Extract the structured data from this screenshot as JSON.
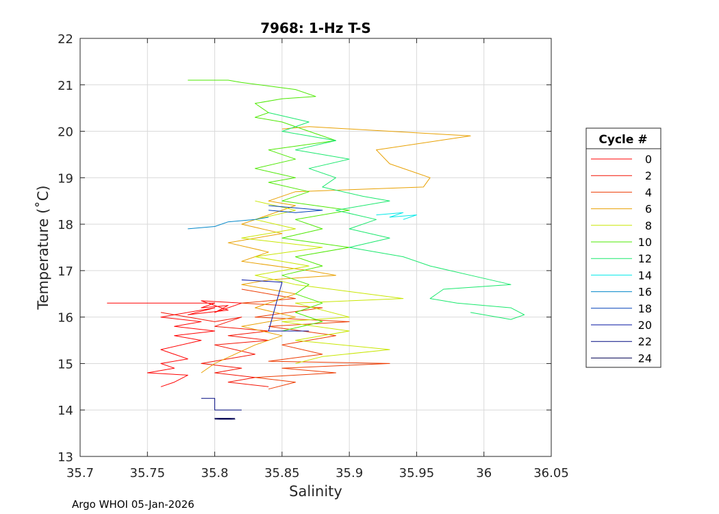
{
  "chart_data": {
    "type": "line",
    "title": "7968: 1-Hz T-S",
    "xlabel": "Salinity",
    "ylabel": "Temperature (˚C)",
    "xlim": [
      35.7,
      36.05
    ],
    "ylim": [
      13,
      22
    ],
    "xticks": [
      35.7,
      35.75,
      35.8,
      35.85,
      35.9,
      35.95,
      36,
      36.05
    ],
    "xtick_labels": [
      "35.7",
      "35.75",
      "35.8",
      "35.85",
      "35.9",
      "35.95",
      "36",
      "36.05"
    ],
    "yticks": [
      13,
      14,
      15,
      16,
      17,
      18,
      19,
      20,
      21,
      22
    ],
    "ytick_labels": [
      "13",
      "14",
      "15",
      "16",
      "17",
      "18",
      "19",
      "20",
      "21",
      "22"
    ],
    "grid": true,
    "legend_title": "Cycle #",
    "legend_position": "outside-right",
    "credit": "Argo WHOI 05-Jan-2026",
    "series": [
      {
        "name": "0",
        "color": "#ff0000",
        "points": [
          [
            35.72,
            16.3
          ],
          [
            35.8,
            16.3
          ],
          [
            35.79,
            16.2
          ],
          [
            35.81,
            16.25
          ],
          [
            35.8,
            16.1
          ],
          [
            35.82,
            16.3
          ],
          [
            35.79,
            16.35
          ],
          [
            35.81,
            16.15
          ],
          [
            35.78,
            16.05
          ],
          [
            35.8,
            16.2
          ],
          [
            35.76,
            16.0
          ],
          [
            35.79,
            15.9
          ],
          [
            35.77,
            15.8
          ],
          [
            35.8,
            15.7
          ],
          [
            35.77,
            15.6
          ],
          [
            35.79,
            15.5
          ],
          [
            35.76,
            15.3
          ],
          [
            35.78,
            15.1
          ],
          [
            35.76,
            15.0
          ],
          [
            35.77,
            14.9
          ],
          [
            35.75,
            14.8
          ],
          [
            35.78,
            14.75
          ],
          [
            35.77,
            14.6
          ],
          [
            35.76,
            14.5
          ]
        ]
      },
      {
        "name": "2",
        "color": "#f41000",
        "points": [
          [
            35.76,
            16.1
          ],
          [
            35.8,
            15.9
          ],
          [
            35.82,
            16.0
          ],
          [
            35.8,
            15.8
          ],
          [
            35.84,
            15.7
          ],
          [
            35.81,
            15.6
          ],
          [
            35.84,
            15.5
          ],
          [
            35.8,
            15.4
          ],
          [
            35.83,
            15.2
          ],
          [
            35.79,
            15.0
          ],
          [
            35.82,
            14.9
          ],
          [
            35.8,
            14.8
          ],
          [
            35.83,
            14.7
          ],
          [
            35.81,
            14.6
          ],
          [
            35.84,
            14.5
          ]
        ]
      },
      {
        "name": "4",
        "color": "#ec3a00",
        "points": [
          [
            35.82,
            16.6
          ],
          [
            35.86,
            16.4
          ],
          [
            35.82,
            16.3
          ],
          [
            35.88,
            16.2
          ],
          [
            35.83,
            16.0
          ],
          [
            35.9,
            15.9
          ],
          [
            35.84,
            15.8
          ],
          [
            35.89,
            15.6
          ],
          [
            35.85,
            15.4
          ],
          [
            35.88,
            15.2
          ],
          [
            35.84,
            15.05
          ],
          [
            35.93,
            15.0
          ],
          [
            35.85,
            14.9
          ],
          [
            35.89,
            14.8
          ],
          [
            35.83,
            14.7
          ],
          [
            35.86,
            14.6
          ],
          [
            35.84,
            14.45
          ]
        ]
      },
      {
        "name": "6",
        "color": "#e8a000",
        "points": [
          [
            35.85,
            20.05
          ],
          [
            35.87,
            20.1
          ],
          [
            35.99,
            19.9
          ],
          [
            35.92,
            19.6
          ],
          [
            35.93,
            19.3
          ],
          [
            35.96,
            19.0
          ],
          [
            35.955,
            18.8
          ],
          [
            35.86,
            18.7
          ],
          [
            35.84,
            18.5
          ],
          [
            35.86,
            18.4
          ],
          [
            35.84,
            18.2
          ],
          [
            35.82,
            18.0
          ],
          [
            35.85,
            17.8
          ],
          [
            35.81,
            17.6
          ],
          [
            35.84,
            17.4
          ],
          [
            35.82,
            17.2
          ],
          [
            35.87,
            17.0
          ],
          [
            35.89,
            16.9
          ],
          [
            35.84,
            16.8
          ],
          [
            35.82,
            16.7
          ],
          [
            35.86,
            16.5
          ],
          [
            35.83,
            16.2
          ],
          [
            35.86,
            16.0
          ],
          [
            35.82,
            15.8
          ],
          [
            35.85,
            15.6
          ],
          [
            35.83,
            15.4
          ],
          [
            35.8,
            15.0
          ],
          [
            35.79,
            14.8
          ]
        ]
      },
      {
        "name": "8",
        "color": "#c8e600",
        "points": [
          [
            35.83,
            18.5
          ],
          [
            35.86,
            18.3
          ],
          [
            35.83,
            18.1
          ],
          [
            35.86,
            17.9
          ],
          [
            35.82,
            17.7
          ],
          [
            35.88,
            17.5
          ],
          [
            35.83,
            17.3
          ],
          [
            35.87,
            17.1
          ],
          [
            35.83,
            16.9
          ],
          [
            35.86,
            16.7
          ],
          [
            35.94,
            16.4
          ],
          [
            35.86,
            16.3
          ],
          [
            35.9,
            16.0
          ],
          [
            35.85,
            15.9
          ],
          [
            35.9,
            15.7
          ],
          [
            35.86,
            15.5
          ],
          [
            35.93,
            15.3
          ],
          [
            35.88,
            15.15
          ],
          [
            35.86,
            15.0
          ]
        ]
      },
      {
        "name": "10",
        "color": "#4ce800",
        "points": [
          [
            35.78,
            21.1
          ],
          [
            35.81,
            21.1
          ],
          [
            35.82,
            21.05
          ],
          [
            35.86,
            20.9
          ],
          [
            35.875,
            20.75
          ],
          [
            35.85,
            20.7
          ],
          [
            35.83,
            20.6
          ],
          [
            35.84,
            20.4
          ],
          [
            35.83,
            20.3
          ],
          [
            35.85,
            20.2
          ],
          [
            35.87,
            20.0
          ],
          [
            35.89,
            19.8
          ],
          [
            35.84,
            19.6
          ],
          [
            35.86,
            19.4
          ],
          [
            35.83,
            19.2
          ],
          [
            35.86,
            19.0
          ],
          [
            35.84,
            18.9
          ],
          [
            35.87,
            18.7
          ],
          [
            35.85,
            18.5
          ],
          [
            35.9,
            18.3
          ],
          [
            35.86,
            18.1
          ],
          [
            35.88,
            17.9
          ],
          [
            35.85,
            17.7
          ],
          [
            35.9,
            17.5
          ],
          [
            35.86,
            17.3
          ],
          [
            35.88,
            17.1
          ],
          [
            35.85,
            16.9
          ],
          [
            35.87,
            16.7
          ],
          [
            35.86,
            16.5
          ],
          [
            35.88,
            16.3
          ],
          [
            35.86,
            16.1
          ],
          [
            35.88,
            15.9
          ],
          [
            35.85,
            15.7
          ]
        ]
      },
      {
        "name": "12",
        "color": "#18e86c",
        "points": [
          [
            35.84,
            20.4
          ],
          [
            35.87,
            20.2
          ],
          [
            35.85,
            20.0
          ],
          [
            35.89,
            19.8
          ],
          [
            35.86,
            19.6
          ],
          [
            35.9,
            19.4
          ],
          [
            35.87,
            19.2
          ],
          [
            35.89,
            19.0
          ],
          [
            35.88,
            18.8
          ],
          [
            35.91,
            18.6
          ],
          [
            35.93,
            18.5
          ],
          [
            35.89,
            18.3
          ],
          [
            35.92,
            18.1
          ],
          [
            35.9,
            17.9
          ],
          [
            35.93,
            17.7
          ],
          [
            35.9,
            17.5
          ],
          [
            35.94,
            17.3
          ],
          [
            35.96,
            17.1
          ],
          [
            35.99,
            16.9
          ],
          [
            36.02,
            16.7
          ],
          [
            35.97,
            16.6
          ],
          [
            35.96,
            16.4
          ],
          [
            35.98,
            16.3
          ],
          [
            36.02,
            16.2
          ],
          [
            36.03,
            16.05
          ],
          [
            36.02,
            15.95
          ],
          [
            35.99,
            16.1
          ]
        ]
      },
      {
        "name": "14",
        "color": "#00e8e8",
        "points": [
          [
            35.92,
            18.2
          ],
          [
            35.94,
            18.25
          ],
          [
            35.93,
            18.15
          ],
          [
            35.95,
            18.2
          ],
          [
            35.94,
            18.1
          ]
        ]
      },
      {
        "name": "16",
        "color": "#0086c8",
        "points": [
          [
            35.78,
            17.9
          ],
          [
            35.8,
            17.95
          ],
          [
            35.81,
            18.05
          ],
          [
            35.83,
            18.1
          ],
          [
            35.84,
            18.15
          ]
        ]
      },
      {
        "name": "18",
        "color": "#0040b8",
        "points": [
          [
            35.84,
            18.4
          ],
          [
            35.86,
            18.35
          ],
          [
            35.88,
            18.3
          ],
          [
            35.86,
            18.25
          ],
          [
            35.84,
            18.3
          ]
        ]
      },
      {
        "name": "20",
        "color": "#0010a0",
        "points": [
          [
            35.82,
            16.8
          ],
          [
            35.85,
            16.75
          ],
          [
            35.84,
            15.7
          ],
          [
            35.87,
            15.7
          ]
        ]
      },
      {
        "name": "22",
        "color": "#000a80",
        "points": [
          [
            35.79,
            14.25
          ],
          [
            35.8,
            14.25
          ],
          [
            35.8,
            14.0
          ],
          [
            35.82,
            14.0
          ]
        ]
      },
      {
        "name": "24",
        "color": "#000050",
        "points": [
          [
            35.8,
            13.8
          ],
          [
            35.815,
            13.8
          ],
          [
            35.8,
            13.82
          ],
          [
            35.815,
            13.82
          ]
        ]
      }
    ]
  }
}
